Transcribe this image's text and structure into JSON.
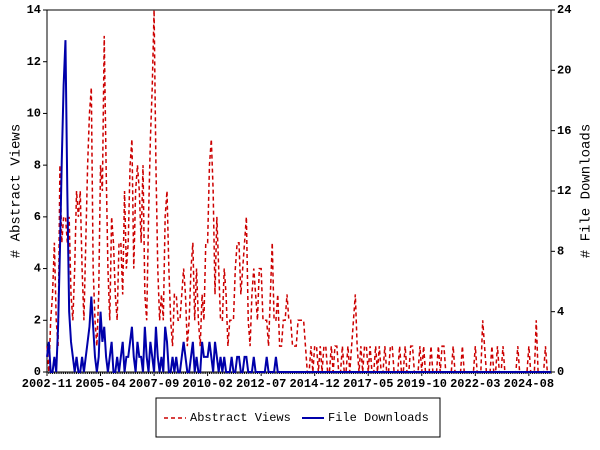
{
  "chart_data": {
    "type": "line",
    "y_label": "# Abstract Views",
    "y2_label": "# File Downloads",
    "categories": [
      "2002-11",
      null,
      null,
      null,
      null,
      null,
      null,
      null,
      null,
      null,
      null,
      null,
      null,
      null,
      null,
      null,
      null,
      null,
      null,
      null,
      null,
      null,
      null,
      null,
      null,
      null,
      null,
      null,
      null,
      "2005-04",
      null,
      null,
      null,
      null,
      null,
      null,
      null,
      null,
      null,
      null,
      null,
      null,
      null,
      null,
      null,
      null,
      null,
      null,
      null,
      null,
      null,
      null,
      null,
      null,
      null,
      null,
      null,
      null,
      "2007-09",
      null,
      null,
      null,
      null,
      null,
      null,
      null,
      null,
      null,
      null,
      null,
      null,
      null,
      null,
      null,
      null,
      null,
      null,
      null,
      null,
      null,
      null,
      null,
      null,
      null,
      null,
      null,
      null,
      "2010-02",
      null,
      null,
      null,
      null,
      null,
      null,
      null,
      null,
      null,
      null,
      null,
      null,
      null,
      null,
      null,
      null,
      null,
      null,
      null,
      null,
      null,
      null,
      null,
      null,
      null,
      null,
      null,
      null,
      "2012-07",
      null,
      null,
      null,
      null,
      null,
      null,
      null,
      null,
      null,
      null,
      null,
      null,
      null,
      null,
      null,
      null,
      null,
      null,
      null,
      null,
      null,
      null,
      null,
      null,
      null,
      null,
      null,
      null,
      "2014-12",
      null,
      null,
      null,
      null,
      null,
      null,
      null,
      null,
      null,
      null,
      null,
      null,
      null,
      null,
      null,
      null,
      null,
      null,
      null,
      null,
      null,
      null,
      null,
      null,
      null,
      null,
      null,
      null,
      "2017-05",
      null,
      null,
      null,
      null,
      null,
      null,
      null,
      null,
      null,
      null,
      null,
      null,
      null,
      null,
      null,
      null,
      null,
      null,
      null,
      null,
      null,
      null,
      null,
      null,
      null,
      null,
      null,
      null,
      "2019-10",
      null,
      null,
      null,
      null,
      null,
      null,
      null,
      null,
      null,
      null,
      null,
      null,
      null,
      null,
      null,
      null,
      null,
      null,
      null,
      null,
      null,
      null,
      null,
      null,
      null,
      null,
      null,
      null,
      "2022-03",
      null,
      null,
      null,
      null,
      null,
      null,
      null,
      null,
      null,
      null,
      null,
      null,
      null,
      null,
      null,
      null,
      null,
      null,
      null,
      null,
      null,
      null,
      null,
      null,
      null,
      null,
      null,
      null,
      "2024-08",
      null,
      null,
      null,
      null,
      null,
      null,
      null,
      null,
      null,
      null,
      null,
      null
    ],
    "series": [
      {
        "name": "Abstract Views",
        "color": "#cc0000",
        "dashed": true,
        "axis": "y",
        "values": [
          1,
          0,
          2,
          3,
          5,
          2,
          1,
          8,
          5,
          6,
          6,
          5,
          6,
          3,
          2,
          4,
          7,
          6,
          7,
          4,
          2,
          5,
          8,
          10,
          11,
          4,
          2,
          1,
          3,
          8,
          7,
          13,
          8,
          4,
          2,
          6,
          5,
          3,
          2,
          5,
          5,
          3,
          7,
          4,
          5,
          8,
          9,
          4,
          7,
          8,
          7,
          5,
          8,
          3,
          2,
          6,
          9,
          11,
          14,
          8,
          4,
          2,
          3,
          2,
          6,
          7,
          4,
          2,
          1,
          3,
          3,
          2,
          2,
          3,
          4,
          3,
          1,
          2,
          4,
          5,
          2,
          4,
          2,
          1,
          3,
          2,
          5,
          5,
          8,
          9,
          7,
          3,
          6,
          4,
          2,
          2,
          4,
          3,
          1,
          2,
          2,
          2,
          4,
          5,
          5,
          3,
          4,
          5,
          6,
          2,
          1,
          3,
          4,
          3,
          2,
          4,
          4,
          2,
          2,
          2,
          1,
          3,
          5,
          2,
          2,
          3,
          1,
          1,
          2,
          2,
          3,
          2,
          2,
          1,
          1,
          1,
          2,
          2,
          2,
          2,
          1,
          0,
          0,
          1,
          0,
          1,
          1,
          0,
          1,
          0,
          1,
          1,
          0,
          0,
          1,
          0,
          1,
          1,
          0,
          0,
          1,
          0,
          0,
          1,
          0,
          1,
          2,
          3,
          1,
          0,
          1,
          0,
          1,
          1,
          0,
          1,
          0,
          0,
          1,
          0,
          1,
          0,
          0,
          1,
          0,
          0,
          1,
          1,
          0,
          0,
          0,
          1,
          0,
          0,
          1,
          0,
          0,
          1,
          1,
          0,
          0,
          0,
          1,
          0,
          1,
          0,
          0,
          0,
          1,
          0,
          0,
          0,
          1,
          0,
          1,
          1,
          0,
          0,
          0,
          0,
          1,
          0,
          0,
          0,
          0,
          1,
          0,
          0,
          0,
          0,
          0,
          0,
          1,
          0,
          0,
          0,
          2,
          1,
          0,
          0,
          0,
          1,
          0,
          0,
          1,
          0,
          0,
          1,
          0,
          0,
          0,
          0,
          0,
          0,
          0,
          1,
          0,
          0,
          0,
          0,
          0,
          1,
          0,
          0,
          0,
          2,
          0,
          0,
          0,
          0,
          1,
          0,
          0,
          0
        ]
      },
      {
        "name": "File Downloads",
        "color": "#0000aa",
        "dashed": false,
        "axis": "y2",
        "values": [
          1,
          2,
          0,
          0,
          1,
          0,
          3,
          8,
          14,
          19,
          22,
          12,
          4,
          2,
          1,
          0,
          1,
          0,
          0,
          1,
          0,
          1,
          2,
          3,
          5,
          3,
          1,
          0,
          1,
          4,
          2,
          3,
          1,
          0,
          1,
          2,
          0,
          0,
          1,
          0,
          1,
          2,
          0,
          1,
          1,
          2,
          3,
          1,
          0,
          2,
          1,
          1,
          0,
          3,
          1,
          0,
          2,
          1,
          0,
          3,
          1,
          0,
          1,
          0,
          3,
          2,
          0,
          0,
          1,
          0,
          1,
          0,
          0,
          1,
          2,
          1,
          0,
          0,
          1,
          2,
          0,
          1,
          0,
          0,
          2,
          1,
          1,
          1,
          2,
          1,
          0,
          2,
          1,
          0,
          1,
          0,
          1,
          0,
          0,
          0,
          1,
          0,
          0,
          1,
          1,
          0,
          0,
          1,
          1,
          0,
          0,
          0,
          1,
          0,
          0,
          0,
          0,
          0,
          0,
          1,
          0,
          0,
          0,
          0,
          1,
          0,
          0,
          0,
          0,
          0,
          0,
          0,
          0,
          0,
          0,
          0,
          0,
          0,
          0,
          0,
          0,
          0,
          0,
          0,
          0,
          0,
          0,
          0,
          0,
          0,
          0,
          0,
          0,
          0,
          0,
          0,
          0,
          0,
          0,
          0,
          0,
          0,
          0,
          0,
          0,
          0,
          0,
          0,
          0,
          0,
          0,
          0,
          0,
          0,
          0,
          0,
          0,
          0,
          0,
          0,
          0,
          0,
          0,
          0,
          0,
          0,
          0,
          0,
          0,
          0,
          0,
          0,
          0,
          0,
          0,
          0,
          0,
          0,
          0,
          0,
          0,
          0,
          0,
          0,
          0,
          0,
          0,
          0,
          0,
          0,
          0,
          0,
          0,
          0,
          0,
          0,
          0,
          0,
          0,
          0,
          0,
          0,
          0,
          0,
          0,
          0,
          0,
          0,
          0,
          0,
          0,
          0,
          0,
          0,
          0,
          0,
          0,
          0,
          0,
          0,
          0,
          0,
          0,
          0,
          0,
          0,
          0,
          0,
          0,
          0,
          0,
          0,
          0,
          0,
          0,
          0,
          0,
          0,
          0,
          0,
          0,
          0,
          0,
          0,
          0,
          0,
          0,
          0,
          0,
          0,
          0,
          0,
          0,
          0
        ]
      }
    ],
    "ylim": [
      0,
      14
    ],
    "yticks": [
      0,
      2,
      4,
      6,
      8,
      10,
      12,
      14
    ],
    "y2lim": [
      0,
      24
    ],
    "y2ticks": [
      0,
      4,
      8,
      12,
      16,
      20,
      24
    ],
    "grid": false,
    "legend": "bottom"
  }
}
